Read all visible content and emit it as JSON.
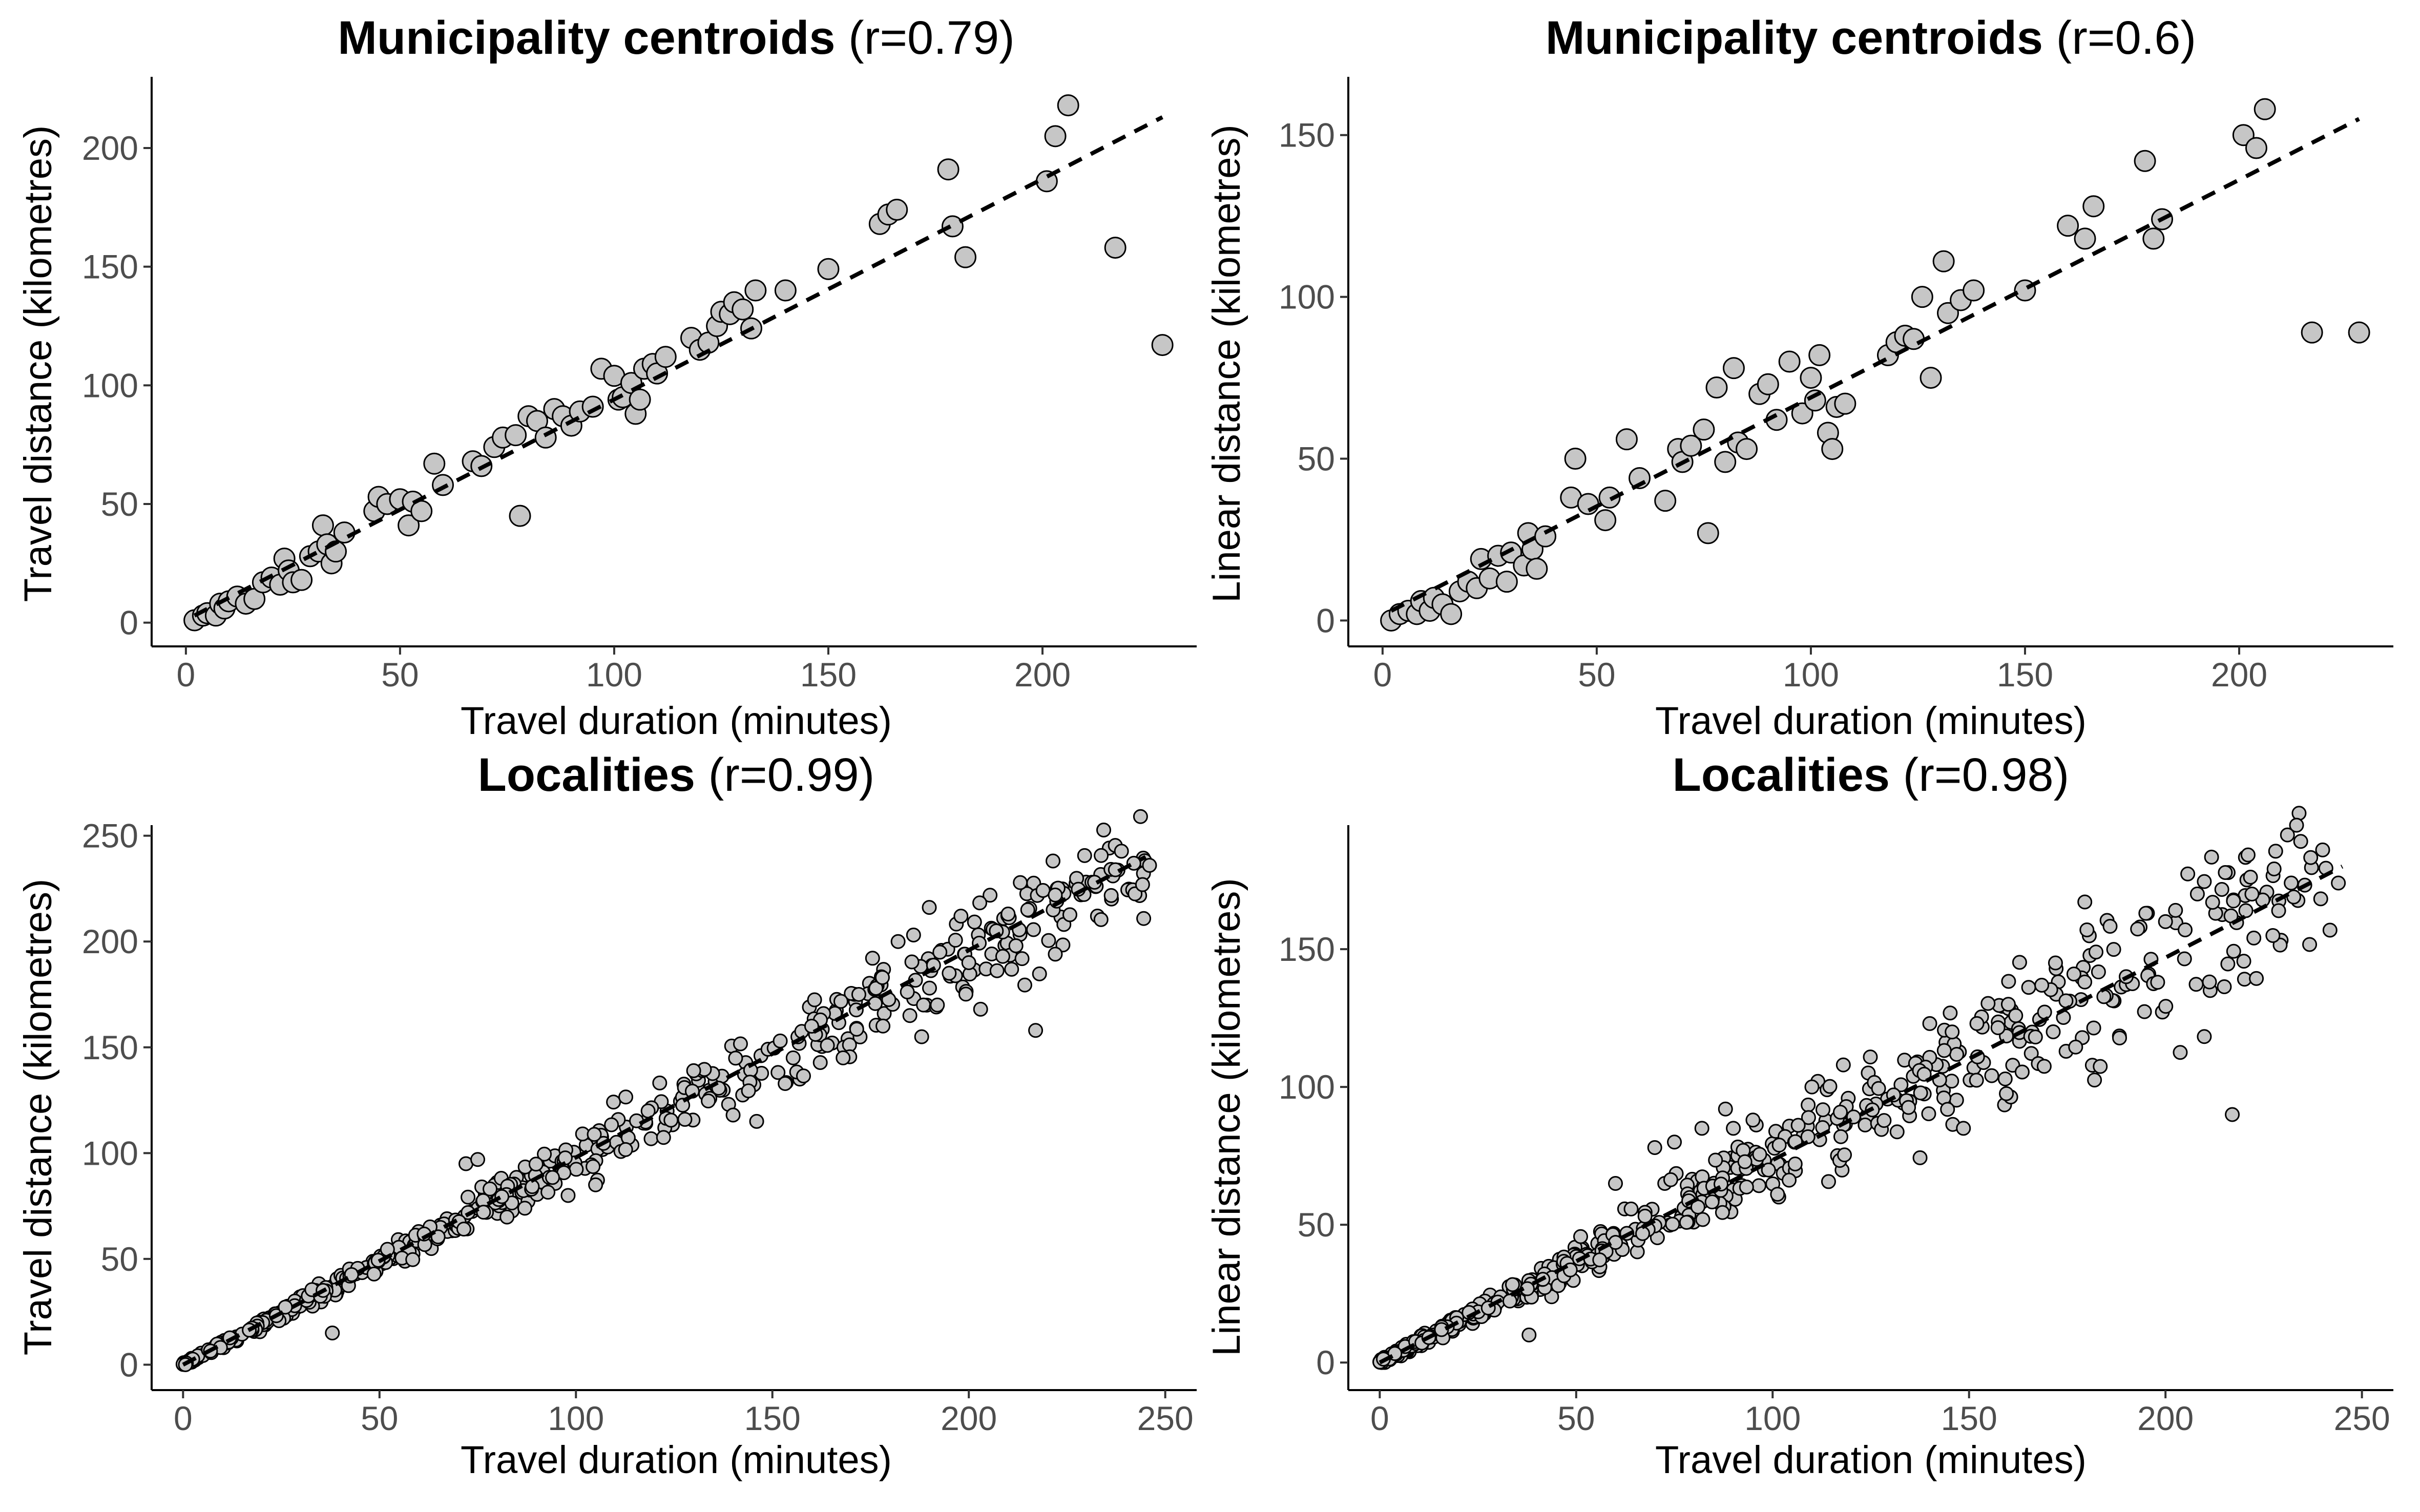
{
  "chart_data": [
    {
      "type": "scatter",
      "title_bold": "Municipality centroids",
      "title_rest": " (r=0.79)",
      "xlabel": "Travel duration (minutes)",
      "ylabel": "Travel distance (kilometres)",
      "xlim": [
        -8,
        236
      ],
      "ylim": [
        -10,
        230
      ],
      "xticks": [
        0,
        50,
        100,
        150,
        200
      ],
      "yticks": [
        0,
        50,
        100,
        150,
        200
      ],
      "point_size": "large",
      "fit_line": {
        "x": [
          2,
          228
        ],
        "y": [
          3,
          213
        ],
        "style": "dashed"
      },
      "points": {
        "x": [
          2,
          4,
          5,
          7,
          8,
          9,
          10,
          12,
          14,
          16,
          18,
          20,
          22,
          23,
          24,
          25,
          27,
          29,
          31,
          32,
          33,
          34,
          35,
          37,
          44,
          45,
          47,
          50,
          52,
          53,
          55,
          58,
          60,
          67,
          69,
          72,
          74,
          77,
          78,
          80,
          82,
          84,
          86,
          88,
          90,
          92,
          95,
          97,
          100,
          101,
          102,
          104,
          105,
          106,
          107,
          109,
          110,
          112,
          118,
          120,
          122,
          124,
          125,
          127,
          128,
          130,
          132,
          133,
          140,
          150,
          162,
          164,
          166,
          178,
          179,
          182,
          201,
          203,
          206,
          217,
          228
        ],
        "y": [
          1,
          3,
          4,
          3,
          8,
          6,
          9,
          11,
          8,
          10,
          17,
          19,
          16,
          27,
          22,
          17,
          18,
          28,
          30,
          41,
          33,
          25,
          30,
          38,
          47,
          53,
          50,
          52,
          41,
          51,
          47,
          67,
          58,
          68,
          66,
          74,
          78,
          79,
          45,
          87,
          85,
          78,
          90,
          87,
          83,
          89,
          91,
          107,
          104,
          94,
          95,
          101,
          88,
          94,
          107,
          109,
          105,
          112,
          120,
          115,
          118,
          125,
          131,
          130,
          135,
          132,
          124,
          140,
          140,
          149,
          168,
          172,
          174,
          191,
          167,
          154,
          186,
          205,
          218,
          158,
          117
        ]
      }
    },
    {
      "type": "scatter",
      "title_bold": "Municipality centroids",
      "title_rest": " (r=0.6)",
      "xlabel": "Travel duration (minutes)",
      "ylabel": "Linear distance (kilometres)",
      "xlim": [
        -8,
        236
      ],
      "ylim": [
        -8,
        168
      ],
      "xticks": [
        0,
        50,
        100,
        150,
        200
      ],
      "yticks": [
        0,
        50,
        100,
        150
      ],
      "point_size": "large",
      "fit_line": {
        "x": [
          2,
          228
        ],
        "y": [
          3,
          155
        ],
        "style": "dashed"
      },
      "points": {
        "x": [
          2,
          4,
          6,
          8,
          9,
          11,
          12,
          14,
          16,
          18,
          20,
          22,
          23,
          25,
          27,
          29,
          30,
          33,
          34,
          35,
          36,
          38,
          44,
          45,
          48,
          52,
          53,
          57,
          60,
          66,
          69,
          70,
          72,
          75,
          76,
          78,
          80,
          82,
          83,
          85,
          88,
          90,
          92,
          95,
          98,
          100,
          101,
          102,
          104,
          105,
          106,
          108,
          118,
          120,
          122,
          124,
          126,
          128,
          131,
          132,
          135,
          138,
          150,
          160,
          164,
          166,
          178,
          180,
          182,
          201,
          204,
          206,
          217,
          228
        ],
        "y": [
          0,
          2,
          3,
          2,
          6,
          3,
          7,
          5,
          2,
          9,
          12,
          10,
          19,
          13,
          20,
          12,
          21,
          17,
          27,
          22,
          16,
          26,
          38,
          50,
          36,
          31,
          38,
          56,
          44,
          37,
          53,
          49,
          54,
          59,
          27,
          72,
          49,
          78,
          55,
          53,
          70,
          73,
          62,
          80,
          64,
          75,
          68,
          82,
          58,
          53,
          66,
          67,
          82,
          86,
          88,
          87,
          100,
          75,
          111,
          95,
          99,
          102,
          102,
          122,
          118,
          128,
          142,
          118,
          124,
          150,
          146,
          158,
          89,
          89
        ]
      }
    },
    {
      "type": "scatter",
      "title_bold": "Localities",
      "title_rest": " (r=0.99)",
      "xlabel": "Travel duration (minutes)",
      "ylabel": "Travel distance (kilometres)",
      "xlim": [
        -8,
        258
      ],
      "ylim": [
        -12,
        255
      ],
      "xticks": [
        0,
        50,
        100,
        150,
        200,
        250
      ],
      "yticks": [
        0,
        50,
        100,
        150,
        200,
        250
      ],
      "point_size": "small",
      "density": "dense",
      "fit_line": {
        "x": [
          0,
          245
        ],
        "y": [
          0,
          240
        ],
        "style": "dashed"
      },
      "points": {
        "x": [
          38,
          72,
          75,
          98,
          105,
          140,
          146,
          152,
          160,
          168,
          172,
          178,
          182,
          185,
          188,
          190,
          192,
          195,
          198,
          200,
          203,
          207,
          210,
          212,
          215,
          217,
          222,
          232,
          242,
          246
        ],
        "y": [
          15,
          95,
          97,
          80,
          85,
          118,
          115,
          153,
          160,
          145,
          175,
          183,
          200,
          165,
          155,
          178,
          170,
          185,
          212,
          190,
          168,
          205,
          213,
          198,
          215,
          158,
          222,
          228,
          237,
          236
        ]
      },
      "cluster": {
        "x_from": 0,
        "x_to": 245,
        "count": 560,
        "seed": 11,
        "slope": 0.97,
        "noise": 0.06
      }
    },
    {
      "type": "scatter",
      "title_bold": "Localities",
      "title_rest": " (r=0.98)",
      "xlabel": "Travel duration (minutes)",
      "ylabel": "Linear distance (kilometres)",
      "xlim": [
        -8,
        258
      ],
      "ylim": [
        -10,
        195
      ],
      "xticks": [
        0,
        50,
        100,
        150,
        200,
        250
      ],
      "yticks": [
        0,
        50,
        100,
        150
      ],
      "point_size": "small",
      "density": "dense",
      "fit_line": {
        "x": [
          0,
          245
        ],
        "y": [
          0,
          180
        ],
        "style": "dashed"
      },
      "points": {
        "x": [
          38,
          60,
          70,
          75,
          82,
          88,
          90,
          95,
          110,
          118,
          140,
          152,
          160,
          172,
          180,
          190,
          195,
          198,
          200,
          205,
          212,
          217,
          222,
          232,
          240,
          244
        ],
        "y": [
          10,
          65,
          78,
          80,
          85,
          92,
          85,
          88,
          100,
          108,
          123,
          123,
          130,
          145,
          157,
          140,
          163,
          138,
          160,
          157,
          167,
          90,
          170,
          174,
          186,
          174
        ]
      },
      "cluster": {
        "x_from": 0,
        "x_to": 245,
        "count": 560,
        "seed": 29,
        "slope": 0.735,
        "noise": 0.1
      }
    }
  ]
}
